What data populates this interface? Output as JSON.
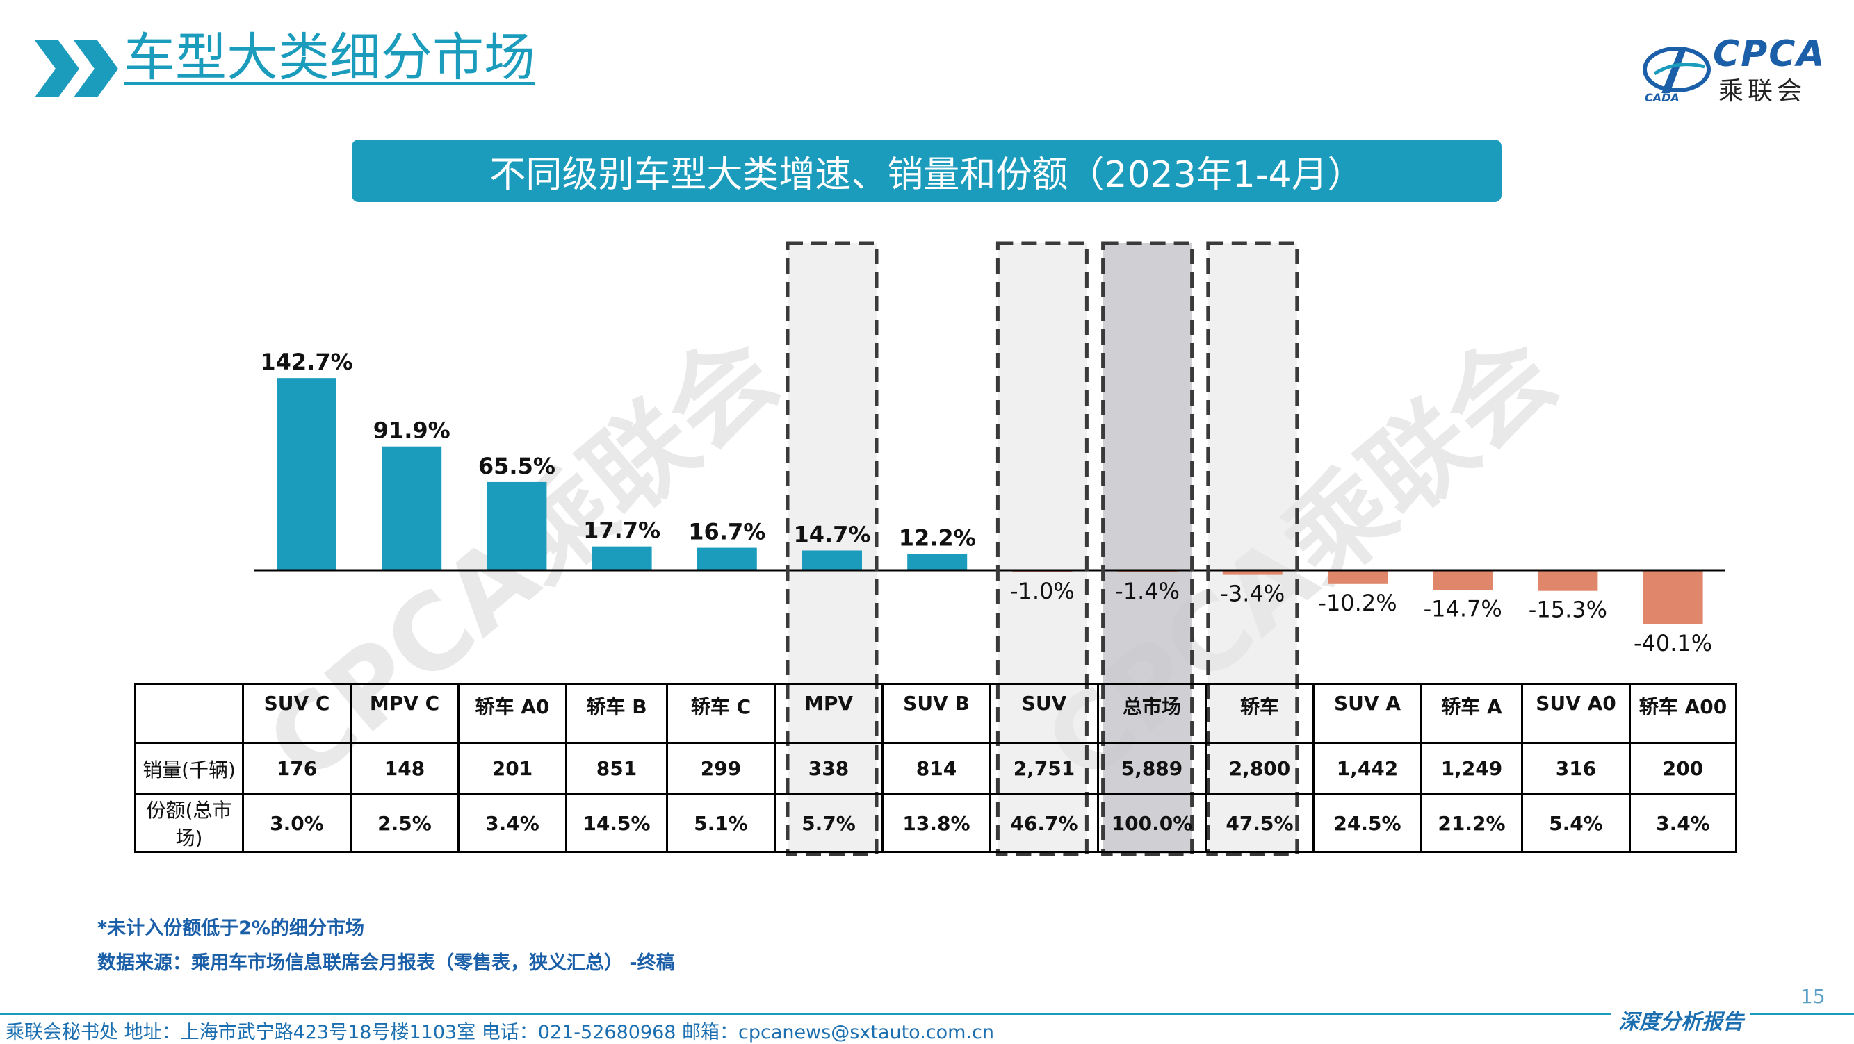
{
  "header": {
    "title": "车型大类细分市场",
    "logo_text": "CPCA",
    "logo_subtext": "乘联会"
  },
  "banner": {
    "title": "不同级别车型大类增速、销量和份额（2023年1-4月）"
  },
  "colors": {
    "accent": "#1b9cbc",
    "positive_bar": "#1b9cbc",
    "negative_bar": "#e0866a",
    "highlight_box": "#e6e6e6",
    "total_box": "#c8c8cc"
  },
  "chart_data": {
    "type": "bar",
    "categories": [
      "SUV C",
      "MPV C",
      "轿车 A0",
      "轿车 B",
      "轿车 C",
      "MPV",
      "SUV B",
      "SUV",
      "总市场",
      "轿车",
      "SUV A",
      "轿车 A",
      "SUV A0",
      "轿车 A00"
    ],
    "values": [
      142.7,
      91.9,
      65.5,
      17.7,
      16.7,
      14.7,
      12.2,
      -1.0,
      -1.4,
      -3.4,
      -10.2,
      -14.7,
      -15.3,
      -40.1
    ],
    "value_labels": [
      "142.7%",
      "91.9%",
      "65.5%",
      "17.7%",
      "16.7%",
      "14.7%",
      "12.2%",
      "-1.0%",
      "-1.4%",
      "-3.4%",
      "-10.2%",
      "-14.7%",
      "-15.3%",
      "-40.1%"
    ],
    "highlighted_categories": [
      "MPV",
      "SUV",
      "总市场",
      "轿车"
    ],
    "legend": "none",
    "grid": false
  },
  "table": {
    "row_labels": [
      "销量(千辆)",
      "份额(总市场)"
    ],
    "sales": [
      "176",
      "148",
      "201",
      "851",
      "299",
      "338",
      "814",
      "2,751",
      "5,889",
      "2,800",
      "1,442",
      "1,249",
      "316",
      "200"
    ],
    "shares": [
      "3.0%",
      "2.5%",
      "3.4%",
      "14.5%",
      "5.1%",
      "5.7%",
      "13.8%",
      "46.7%",
      "100.0%",
      "47.5%",
      "24.5%",
      "21.2%",
      "5.4%",
      "3.4%"
    ]
  },
  "notes": {
    "note1": "*未计入份额低于2%的细分市场",
    "note2": "数据来源：乘用车市场信息联席会月报表（零售表，狭义汇总） -终稿"
  },
  "page_number": "15",
  "footer": {
    "contact": "乘联会秘书处   地址：上海市武宁路423号18号楼1103室   电话：021-52680968   邮箱：cpcanews@sxtauto.com.cn",
    "tag": "深度分析报告"
  },
  "watermark": "CPCA乘联会"
}
